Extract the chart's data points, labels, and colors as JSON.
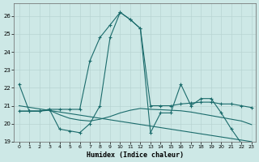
{
  "xlabel": "Humidex (Indice chaleur)",
  "background_color": "#cde8e6",
  "grid_color": "#b8d4d2",
  "line_color": "#1a6b6b",
  "xlim_min": -0.5,
  "xlim_max": 23.4,
  "ylim_min": 19.0,
  "ylim_max": 26.7,
  "yticks": [
    19,
    20,
    21,
    22,
    23,
    24,
    25,
    26
  ],
  "xticks": [
    0,
    1,
    2,
    3,
    4,
    5,
    6,
    7,
    8,
    9,
    10,
    11,
    12,
    13,
    14,
    15,
    16,
    17,
    18,
    19,
    20,
    21,
    22,
    23
  ],
  "line1_x": [
    0,
    1,
    2,
    3,
    4,
    5,
    6,
    7,
    8,
    9,
    10,
    11,
    12,
    13,
    14,
    15,
    16,
    17,
    18,
    19,
    20,
    21,
    22,
    23
  ],
  "line1_y": [
    22.2,
    20.7,
    20.7,
    20.8,
    19.7,
    19.6,
    19.5,
    20.0,
    21.0,
    24.8,
    26.2,
    25.8,
    25.3,
    19.5,
    20.6,
    20.6,
    22.2,
    21.0,
    21.4,
    21.4,
    20.6,
    19.7,
    18.9,
    18.7
  ],
  "line2_x": [
    0,
    1,
    2,
    3,
    4,
    5,
    6,
    7,
    8,
    9,
    10,
    11,
    12,
    13,
    14,
    15,
    16,
    17,
    18,
    19,
    20,
    21,
    22,
    23
  ],
  "line2_y": [
    20.7,
    20.7,
    20.7,
    20.8,
    20.8,
    20.8,
    20.8,
    23.5,
    24.8,
    25.5,
    26.2,
    25.8,
    25.3,
    21.0,
    21.0,
    21.0,
    21.1,
    21.15,
    21.2,
    21.2,
    21.1,
    21.1,
    21.0,
    20.9
  ],
  "line3_x": [
    0,
    1,
    2,
    3,
    4,
    5,
    6,
    7,
    8,
    9,
    10,
    11,
    12,
    13,
    14,
    15,
    16,
    17,
    18,
    19,
    20,
    21,
    22,
    23
  ],
  "line3_y": [
    20.7,
    20.7,
    20.7,
    20.75,
    20.5,
    20.3,
    20.2,
    20.15,
    20.25,
    20.4,
    20.6,
    20.75,
    20.85,
    20.8,
    20.78,
    20.75,
    20.72,
    20.65,
    20.55,
    20.45,
    20.35,
    20.25,
    20.15,
    19.95
  ],
  "line4_x": [
    0,
    23
  ],
  "line4_y": [
    21.0,
    19.0
  ]
}
